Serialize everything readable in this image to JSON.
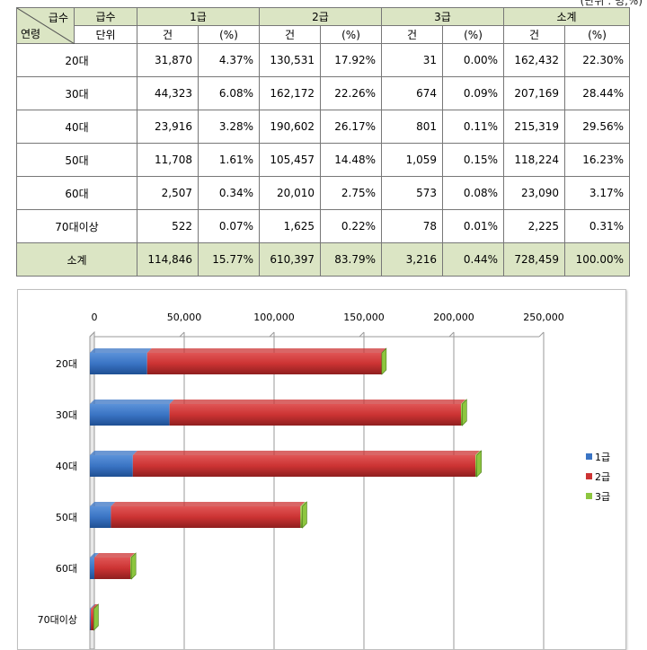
{
  "unit_note": "(단위 : 명,%)",
  "table": {
    "corner_top": "급수",
    "corner_bottom": "연령",
    "corner_sub": "단위",
    "grade_headers": [
      "1급",
      "2급",
      "3급",
      "소계"
    ],
    "sub_headers": [
      "건",
      "(%)",
      "건",
      "(%)",
      "건",
      "(%)",
      "건",
      "(%)"
    ],
    "rows": [
      {
        "age": "20대",
        "values": [
          "31,870",
          "4.37%",
          "130,531",
          "17.92%",
          "31",
          "0.00%",
          "162,432",
          "22.30%"
        ]
      },
      {
        "age": "30대",
        "values": [
          "44,323",
          "6.08%",
          "162,172",
          "22.26%",
          "674",
          "0.09%",
          "207,169",
          "28.44%"
        ]
      },
      {
        "age": "40대",
        "values": [
          "23,916",
          "3.28%",
          "190,602",
          "26.17%",
          "801",
          "0.11%",
          "215,319",
          "29.56%"
        ]
      },
      {
        "age": "50대",
        "values": [
          "11,708",
          "1.61%",
          "105,457",
          "14.48%",
          "1,059",
          "0.15%",
          "118,224",
          "16.23%"
        ]
      },
      {
        "age": "60대",
        "values": [
          "2,507",
          "0.34%",
          "20,010",
          "2.75%",
          "573",
          "0.08%",
          "23,090",
          "3.17%"
        ]
      },
      {
        "age": "70대이상",
        "values": [
          "522",
          "0.07%",
          "1,625",
          "0.22%",
          "78",
          "0.01%",
          "2,225",
          "0.31%"
        ]
      }
    ],
    "total": {
      "age": "소계",
      "values": [
        "114,846",
        "15.77%",
        "610,397",
        "83.79%",
        "3,216",
        "0.44%",
        "728,459",
        "100.00%"
      ]
    }
  },
  "chart_data": {
    "type": "bar",
    "orientation": "horizontal",
    "stacked": true,
    "categories": [
      "20대",
      "30대",
      "40대",
      "50대",
      "60대",
      "70대이상"
    ],
    "series": [
      {
        "name": "1급",
        "values": [
          31870,
          44323,
          23916,
          11708,
          2507,
          522
        ],
        "color": "#3a74c4"
      },
      {
        "name": "2급",
        "values": [
          130531,
          162172,
          190602,
          105457,
          20010,
          1625
        ],
        "color": "#cc3333"
      },
      {
        "name": "3급",
        "values": [
          31,
          674,
          801,
          1059,
          573,
          78
        ],
        "color": "#8dc63f"
      }
    ],
    "xlim": [
      0,
      250000
    ],
    "xticks": [
      0,
      50000,
      100000,
      150000,
      200000,
      250000
    ],
    "xtick_labels": [
      "0",
      "50,000",
      "100,000",
      "150,000",
      "200,000",
      "250,000"
    ],
    "axis_position": "top",
    "grid": true,
    "legend": "right"
  }
}
